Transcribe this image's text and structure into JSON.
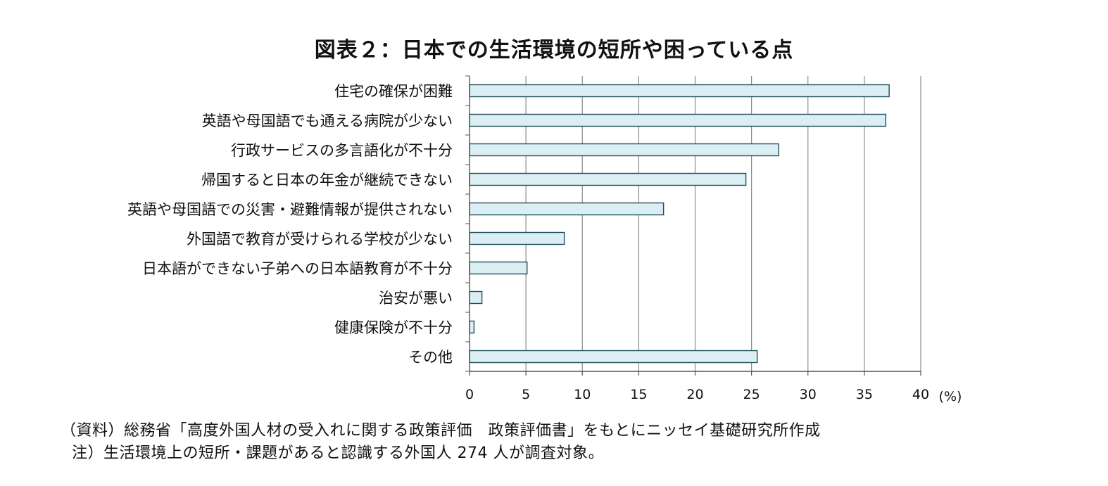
{
  "chart_data": {
    "type": "bar",
    "orientation": "horizontal",
    "title": "図表２：日本での生活環境の短所や困っている点",
    "unit_label": "(%)",
    "categories": [
      "住宅の確保が困難",
      "英語や母国語でも通える病院が少ない",
      "行政サービスの多言語化が不十分",
      "帰国すると日本の年金が継続できない",
      "英語や母国語での災害・避難情報が提供されない",
      "外国語で教育が受けられる学校が少ない",
      "日本語ができない子弟への日本語教育が不十分",
      "治安が悪い",
      "健康保険が不十分",
      "その他"
    ],
    "values": [
      37.2,
      36.9,
      27.4,
      24.5,
      17.2,
      8.4,
      5.1,
      1.1,
      0.4,
      25.5
    ],
    "xlim": [
      0,
      40
    ],
    "xticks": [
      0,
      5,
      10,
      15,
      20,
      25,
      30,
      35,
      40
    ],
    "grid": true,
    "bar_fill": "#daeef3",
    "bar_stroke": "#1f4e5a",
    "grid_color": "#8c8c8c"
  },
  "notes": {
    "source": "（資料）総務省「高度外国人材の受入れに関する政策評価　政策評価書」をもとにニッセイ基礎研究所作成",
    "note": "注）生活環境上の短所・課題があると認識する外国人 274 人が調査対象。"
  }
}
